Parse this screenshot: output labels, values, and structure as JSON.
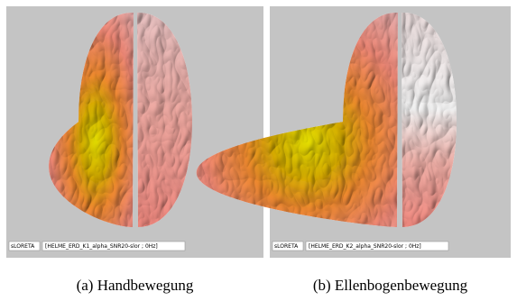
{
  "panels": [
    {
      "status_method": "sLORETA",
      "status_file": "[HELME_ERD_K1_alpha_SNR20-slor ; 0Hz]",
      "caption": "(a) Handbewegung"
    },
    {
      "status_method": "sLORETA",
      "status_file": "[HELME_ERD_K2_alpha_SNR20-slor ; 0Hz]",
      "caption": "(b) Ellenbogenbewegung"
    }
  ]
}
